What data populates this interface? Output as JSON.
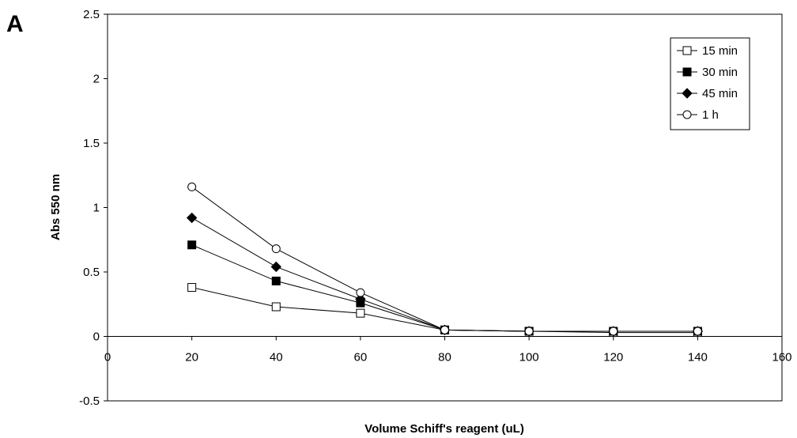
{
  "panel_label": "A",
  "chart_data": {
    "type": "line",
    "title": "",
    "xlabel": "Volume Schiff's reagent (uL)",
    "ylabel": "Abs 550 nm",
    "xlim": [
      0,
      160
    ],
    "ylim": [
      -0.5,
      2.5
    ],
    "x_ticks": [
      "0",
      "20",
      "40",
      "60",
      "80",
      "100",
      "120",
      "140",
      "160"
    ],
    "y_ticks": [
      "-0.5",
      "0",
      "0.5",
      "1",
      "1.5",
      "2",
      "2.5"
    ],
    "grid": false,
    "legend_position": "top-right",
    "x": [
      20,
      40,
      60,
      80,
      100,
      120,
      140
    ],
    "series": [
      {
        "name": "15 min",
        "marker": "open-square",
        "values": [
          0.38,
          0.23,
          0.18,
          0.05,
          0.04,
          0.03,
          0.03
        ]
      },
      {
        "name": "30 min",
        "marker": "filled-square",
        "values": [
          0.71,
          0.43,
          0.26,
          0.05,
          0.04,
          0.04,
          0.04
        ]
      },
      {
        "name": "45 min",
        "marker": "filled-diamond",
        "values": [
          0.92,
          0.54,
          0.29,
          0.05,
          0.04,
          0.04,
          0.04
        ]
      },
      {
        "name": "1 h",
        "marker": "open-circle",
        "values": [
          1.16,
          0.68,
          0.34,
          0.05,
          0.04,
          0.04,
          0.04
        ]
      }
    ]
  }
}
